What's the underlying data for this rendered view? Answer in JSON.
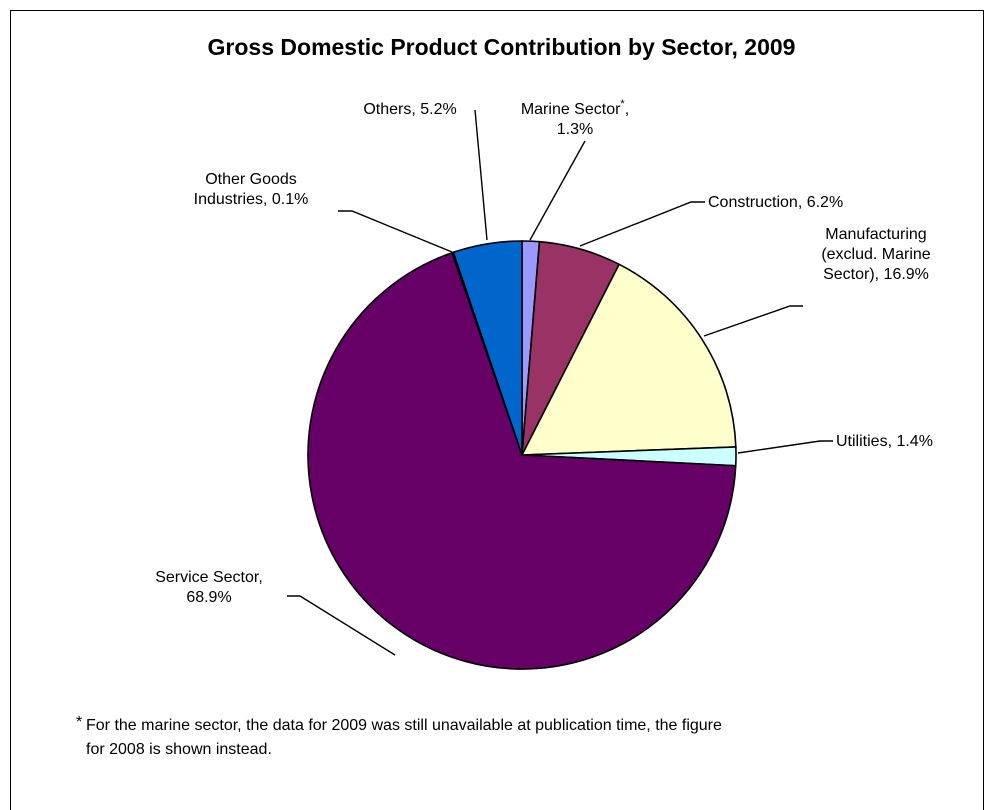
{
  "chart_data": {
    "type": "pie",
    "title": "Gross Domestic Product Contribution by Sector, 2009",
    "slices": [
      {
        "name": "Marine Sector",
        "value": 1.3,
        "label_lines": [
          "Marine Sector*,",
          "1.3%"
        ],
        "color": "#9999FF"
      },
      {
        "name": "Construction",
        "value": 6.2,
        "label_lines": [
          "Construction, 6.2%"
        ],
        "color": "#993366"
      },
      {
        "name": "Manufacturing (exclud. Marine Sector)",
        "value": 16.9,
        "label_lines": [
          "Manufacturing",
          "(exclud. Marine",
          "Sector), 16.9%"
        ],
        "color": "#FFFFCC"
      },
      {
        "name": "Utilities",
        "value": 1.4,
        "label_lines": [
          "Utilities, 1.4%"
        ],
        "color": "#CCFFFF"
      },
      {
        "name": "Service Sector",
        "value": 68.9,
        "label_lines": [
          "Service Sector,",
          "68.9%"
        ],
        "color": "#660066"
      },
      {
        "name": "Other Goods Industries",
        "value": 0.1,
        "label_lines": [
          "Other Goods",
          "Industries, 0.1%"
        ],
        "color": "#FF8080"
      },
      {
        "name": "Others",
        "value": 5.2,
        "label_lines": [
          "Others, 5.2%"
        ],
        "color": "#0066CC"
      }
    ],
    "footnote": {
      "marker": "*",
      "lines": [
        "For the marine sector, the data for 2009 was still unavailable at publication time, the figure",
        "for 2008 is shown instead."
      ]
    }
  }
}
